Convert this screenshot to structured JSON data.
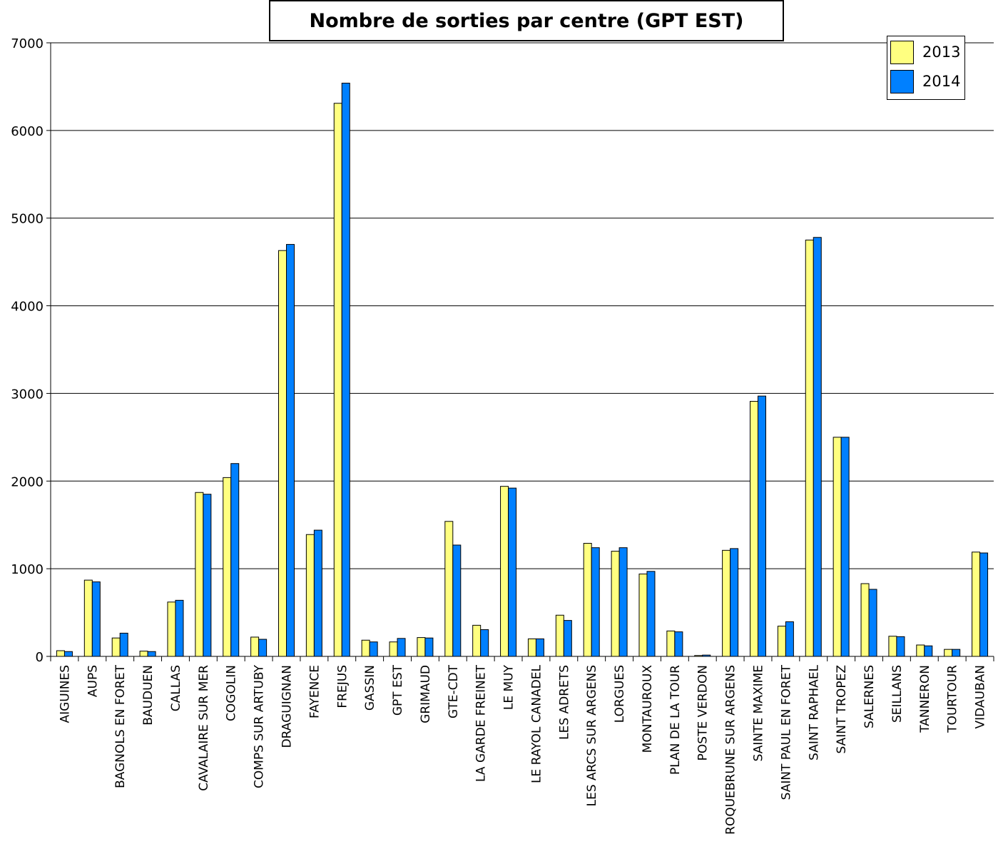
{
  "chart_data": {
    "type": "bar",
    "title": "Nombre de sorties par centre (GPT EST)",
    "xlabel": "",
    "ylabel": "",
    "ylim": [
      0,
      7000
    ],
    "yticks": [
      "0",
      "1000",
      "2000",
      "3000",
      "4000",
      "5000",
      "6000",
      "7000"
    ],
    "grid": true,
    "legend_position": "top-right",
    "categories": [
      "AIGUINES",
      "AUPS",
      "BAGNOLS EN FORET",
      "BAUDUEN",
      "CALLAS",
      "CAVALAIRE SUR MER",
      "COGOLIN",
      "COMPS SUR ARTUBY",
      "DRAGUIGNAN",
      "FAYENCE",
      "FREJUS",
      "GASSIN",
      "GPT EST",
      "GRIMAUD",
      "GTE-CDT",
      "LA GARDE FREINET",
      "LE MUY",
      "LE RAYOL CANADEL",
      "LES ADRETS",
      "LES ARCS SUR ARGENS",
      "LORGUES",
      "MONTAUROUX",
      "PLAN DE LA TOUR",
      "POSTE VERDON",
      "ROQUEBRUNE SUR ARGENS",
      "SAINTE MAXIME",
      "SAINT PAUL EN FORET",
      "SAINT RAPHAEL",
      "SAINT TROPEZ",
      "SALERNES",
      "SEILLANS",
      "TANNERON",
      "TOURTOUR",
      "VIDAUBAN"
    ],
    "series": [
      {
        "name": "2013",
        "color": "#ffff80",
        "values": [
          65,
          870,
          210,
          60,
          620,
          1870,
          2040,
          220,
          4630,
          1390,
          6310,
          185,
          165,
          215,
          1540,
          355,
          1940,
          200,
          470,
          1290,
          1200,
          940,
          290,
          10,
          1210,
          2910,
          345,
          4750,
          2500,
          830,
          230,
          130,
          80,
          1190
        ]
      },
      {
        "name": "2014",
        "color": "#0080ff",
        "values": [
          55,
          850,
          265,
          55,
          640,
          1850,
          2200,
          195,
          4700,
          1440,
          6540,
          165,
          205,
          210,
          1270,
          305,
          1920,
          200,
          410,
          1240,
          1240,
          970,
          280,
          15,
          1230,
          2970,
          395,
          4780,
          2500,
          765,
          225,
          120,
          80,
          1180
        ]
      }
    ]
  }
}
